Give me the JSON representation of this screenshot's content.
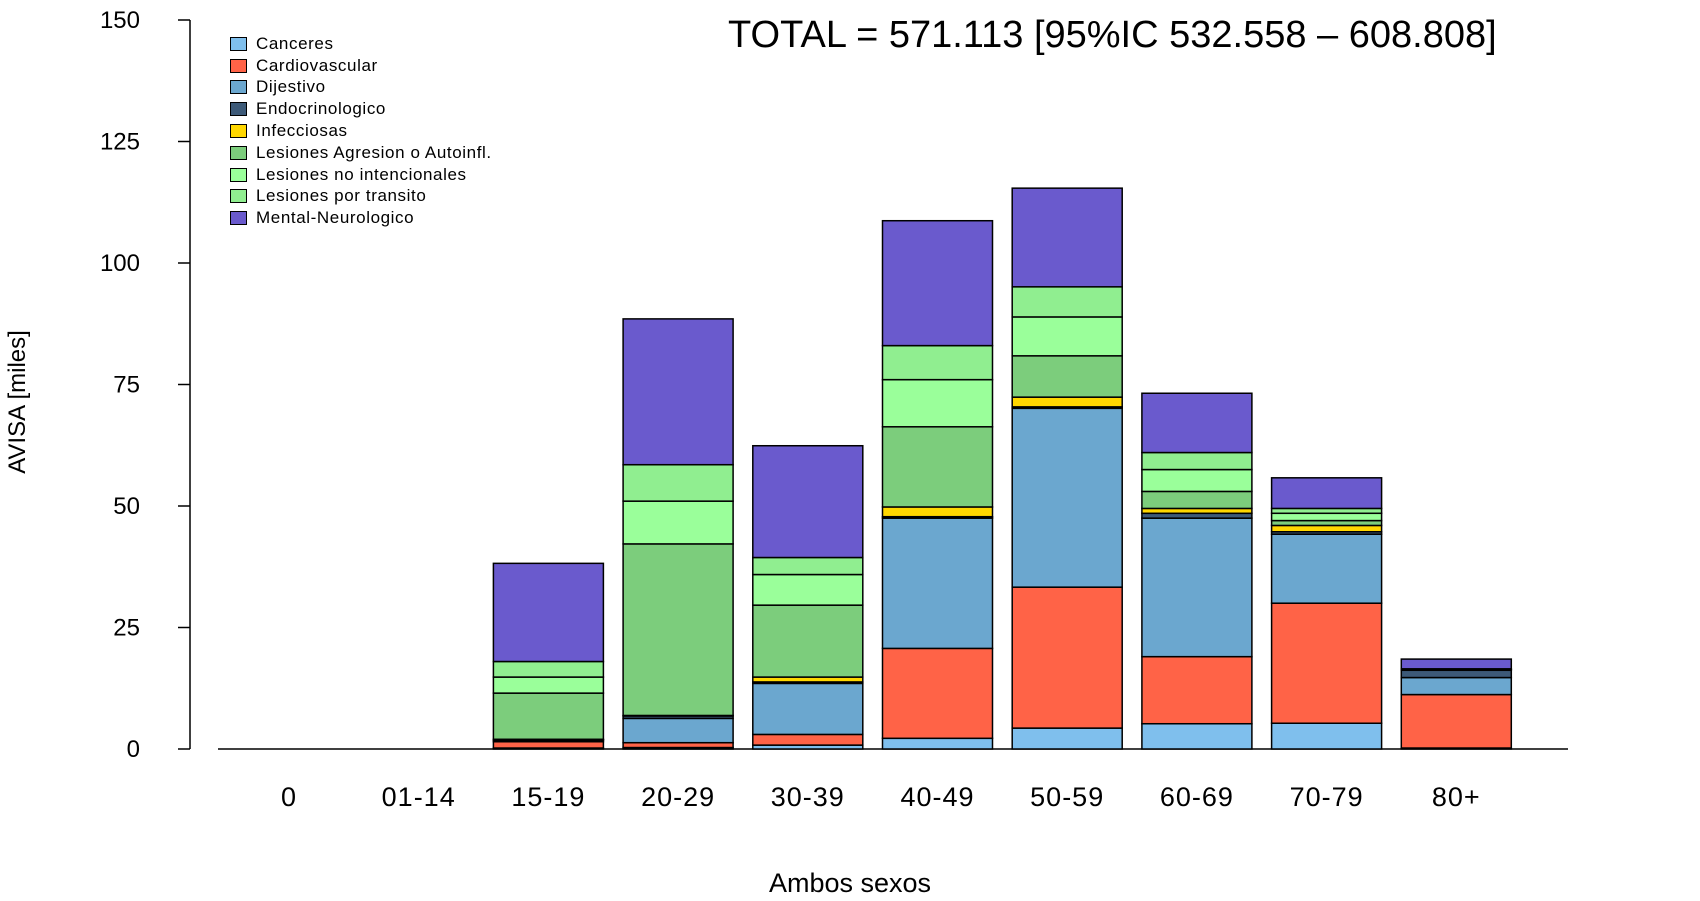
{
  "annotation": "TOTAL = 571.113 [95%IC 532.558 – 608.808]",
  "chart_data": {
    "type": "bar",
    "stacked": true,
    "xlabel": "Ambos sexos",
    "ylabel": "AVISA [miles]",
    "ylim": [
      0,
      150
    ],
    "yticks": [
      "0",
      "25",
      "50",
      "75",
      "100",
      "125",
      "150"
    ],
    "categories": [
      "0",
      "01-14",
      "15-19",
      "20-29",
      "30-39",
      "40-49",
      "50-59",
      "60-69",
      "70-79",
      "80+"
    ],
    "legend_position": "top-left",
    "series": [
      {
        "name": "Canceres",
        "color": "#7fbfed",
        "values": [
          0,
          0,
          0.2,
          0.3,
          0.8,
          2.2,
          4.3,
          5.2,
          5.3,
          0.2
        ]
      },
      {
        "name": "Cardiovascular",
        "color": "#ff6347",
        "values": [
          0,
          0,
          1.3,
          1.0,
          2.2,
          18.5,
          29.0,
          13.8,
          24.7,
          11.0
        ]
      },
      {
        "name": "Dijestivo",
        "color": "#6ba7cf",
        "values": [
          0,
          0,
          0.3,
          5.0,
          10.5,
          26.8,
          36.8,
          28.5,
          14.2,
          3.5
        ]
      },
      {
        "name": "Endocrinologico",
        "color": "#3d5a78",
        "values": [
          0,
          0,
          0.1,
          0.5,
          0.3,
          0.3,
          0.3,
          1.0,
          0.5,
          1.5
        ]
      },
      {
        "name": "Infecciosas",
        "color": "#ffd700",
        "values": [
          0,
          0,
          0.1,
          0.1,
          1.0,
          2.0,
          2.0,
          1.0,
          1.3,
          0.0
        ]
      },
      {
        "name": "Lesiones Agresion o Autoinfl.",
        "color": "#7ccd7c",
        "values": [
          0,
          0,
          9.5,
          35.3,
          14.8,
          16.5,
          8.5,
          3.5,
          1.0,
          0.1
        ]
      },
      {
        "name": "Lesiones no intencionales",
        "color": "#9aff9a",
        "values": [
          0,
          0,
          3.3,
          8.8,
          6.3,
          9.7,
          8.0,
          4.5,
          1.5,
          0.1
        ]
      },
      {
        "name": "Lesiones por transito",
        "color": "#90ee90",
        "values": [
          0,
          0,
          3.2,
          7.5,
          3.5,
          7.0,
          6.2,
          3.5,
          1.0,
          0.1
        ]
      },
      {
        "name": "Mental-Neurologico",
        "color": "#6a5acd",
        "values": [
          0,
          0,
          20.2,
          30.0,
          23.0,
          25.7,
          20.3,
          12.2,
          6.3,
          2.0
        ]
      }
    ]
  }
}
